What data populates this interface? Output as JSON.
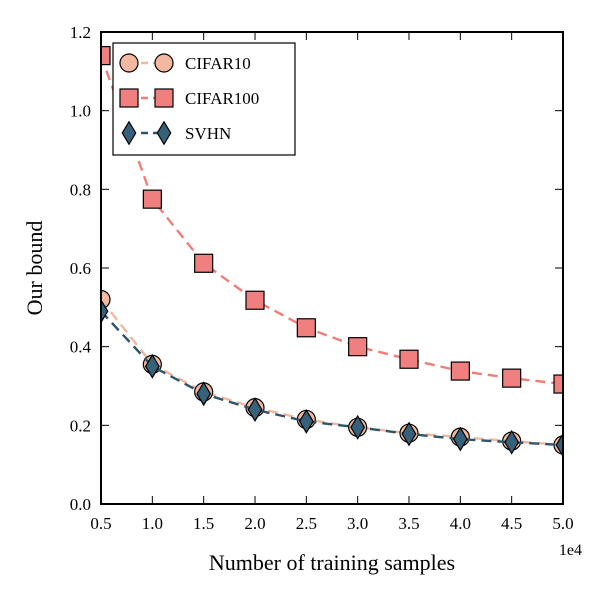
{
  "chart_data": {
    "type": "line",
    "title": "",
    "xlabel": "Number of training samples",
    "ylabel": "Our bound",
    "x_offset_label": "1e4",
    "x": [
      0.5,
      1.0,
      1.5,
      2.0,
      2.5,
      3.0,
      3.5,
      4.0,
      4.5,
      5.0
    ],
    "xlim": [
      0.5,
      5.0
    ],
    "ylim": [
      0.0,
      1.2
    ],
    "xticks": [
      "0.5",
      "1.0",
      "1.5",
      "2.0",
      "2.5",
      "3.0",
      "3.5",
      "4.0",
      "4.5",
      "5.0"
    ],
    "yticks": [
      "0.0",
      "0.2",
      "0.4",
      "0.6",
      "0.8",
      "1.0",
      "1.2"
    ],
    "grid": false,
    "legend_position": "top-left",
    "series": [
      {
        "name": "CIFAR10",
        "marker": "circle",
        "line_color": "#f0b8a0",
        "marker_fill": "#f2b8a0",
        "values": [
          0.52,
          0.355,
          0.285,
          0.245,
          0.215,
          0.195,
          0.18,
          0.17,
          0.16,
          0.15
        ]
      },
      {
        "name": "CIFAR100",
        "marker": "square",
        "line_color": "#f07e78",
        "marker_fill": "#f08080",
        "values": [
          1.14,
          0.775,
          0.612,
          0.518,
          0.448,
          0.4,
          0.368,
          0.338,
          0.32,
          0.305
        ]
      },
      {
        "name": "SVHN",
        "marker": "diamond",
        "line_color": "#2d5468",
        "marker_fill": "#35617a",
        "values": [
          0.49,
          0.35,
          0.28,
          0.24,
          0.21,
          0.195,
          0.178,
          0.165,
          0.157,
          0.15
        ]
      }
    ]
  }
}
